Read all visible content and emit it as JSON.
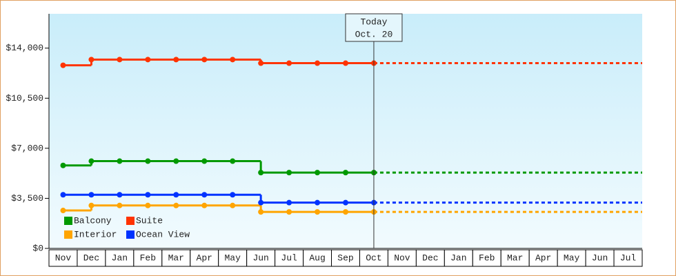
{
  "chart_data": {
    "type": "line",
    "step": true,
    "categories": [
      "Nov",
      "Dec",
      "Jan",
      "Feb",
      "Mar",
      "Apr",
      "May",
      "Jun",
      "Jul",
      "Aug",
      "Sep",
      "Oct",
      "Nov",
      "Dec",
      "Jan",
      "Feb",
      "Mar",
      "Apr",
      "May",
      "Jun",
      "Jul"
    ],
    "series": [
      {
        "name": "Balcony",
        "color": "#009900",
        "values": [
          5800,
          6100,
          6100,
          6100,
          6100,
          6100,
          6100,
          5300,
          5300,
          5300,
          5300,
          5300,
          null,
          null,
          null,
          null,
          null,
          null,
          null,
          null,
          null
        ]
      },
      {
        "name": "Suite",
        "color": "#ff3300",
        "values": [
          12800,
          13200,
          13200,
          13200,
          13200,
          13200,
          13200,
          12950,
          12950,
          12950,
          12950,
          12950,
          null,
          null,
          null,
          null,
          null,
          null,
          null,
          null,
          null
        ]
      },
      {
        "name": "Interior",
        "color": "#ffa500",
        "values": [
          2650,
          3000,
          3000,
          3000,
          3000,
          3000,
          3000,
          2550,
          2550,
          2550,
          2550,
          2550,
          null,
          null,
          null,
          null,
          null,
          null,
          null,
          null,
          null
        ]
      },
      {
        "name": "Ocean View",
        "color": "#0033ff",
        "values": [
          3750,
          3750,
          3750,
          3750,
          3750,
          3750,
          3750,
          3200,
          3200,
          3200,
          3200,
          3200,
          null,
          null,
          null,
          null,
          null,
          null,
          null,
          null,
          null
        ]
      }
    ],
    "ylim": [
      0,
      16400
    ],
    "yticks": [
      {
        "value": 0,
        "label": "$0"
      },
      {
        "value": 3500,
        "label": "$3,500"
      },
      {
        "value": 7000,
        "label": "$7,000"
      },
      {
        "value": 10500,
        "label": "$10,500"
      },
      {
        "value": 14000,
        "label": "$14,000"
      }
    ],
    "annotation": {
      "title": "Today",
      "date": "Oct. 20"
    },
    "projection": "dotted",
    "legend": "bottom-left"
  }
}
